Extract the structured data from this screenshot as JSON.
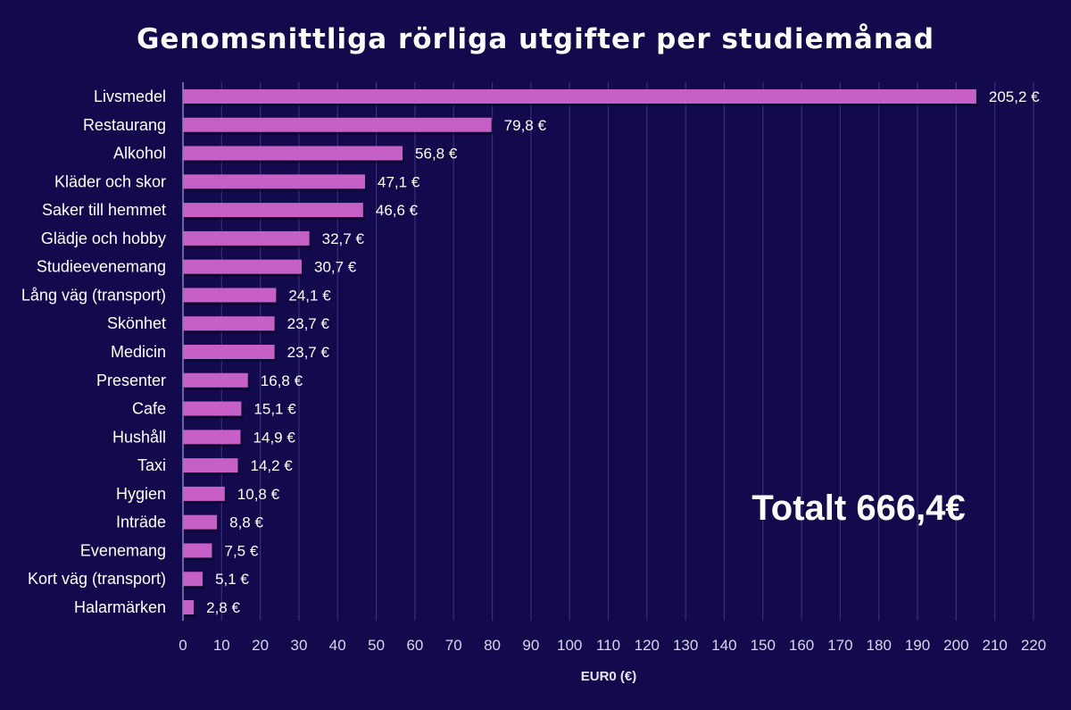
{
  "chart_data": {
    "type": "bar",
    "orientation": "horizontal",
    "title": "Genomsnittliga rörliga utgifter per studiemånad",
    "xlabel": "EUR0 (€)",
    "ylabel": "",
    "xlim": [
      0,
      220
    ],
    "x_ticks": [
      0,
      10,
      20,
      30,
      40,
      50,
      60,
      70,
      80,
      90,
      100,
      110,
      120,
      130,
      140,
      150,
      160,
      170,
      180,
      190,
      200,
      210,
      220
    ],
    "grid": true,
    "categories": [
      "Livsmedel",
      "Restaurang",
      "Alkohol",
      "Kläder och skor",
      "Saker till hemmet",
      "Glädje och hobby",
      "Studieevenemang",
      "Lång väg (transport)",
      "Skönhet",
      "Medicin",
      "Presenter",
      "Cafe",
      "Hushåll",
      "Taxi",
      "Hygien",
      "Inträde",
      "Evenemang",
      "Kort väg (transport)",
      "Halarmärken"
    ],
    "values": [
      205.2,
      79.8,
      56.8,
      47.1,
      46.6,
      32.7,
      30.7,
      24.1,
      23.7,
      23.7,
      16.8,
      15.1,
      14.9,
      14.2,
      10.8,
      8.8,
      7.5,
      5.1,
      2.8
    ],
    "data_labels": [
      "205,2 €",
      "79,8 €",
      "56,8 €",
      "47,1 €",
      "46,6 €",
      "32,7 €",
      "30,7 €",
      "24,1 €",
      "23,7 €",
      "23,7 €",
      "16,8 €",
      "15,1 €",
      "14,9 €",
      "14,2 €",
      "10,8 €",
      "8,8 €",
      "7,5 €",
      "5,1 €",
      "2,8 €"
    ],
    "annotations": [
      "Totalt 666,4€"
    ]
  },
  "colors": {
    "background": "#13094d",
    "bar": "#c65fc6",
    "grid": "#3a2f7a",
    "text": "#ffffff"
  }
}
